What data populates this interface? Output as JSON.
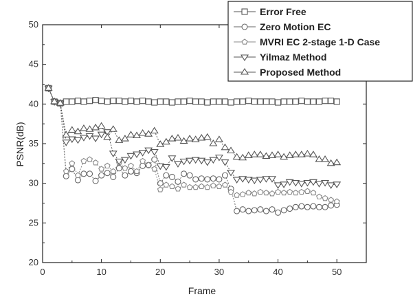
{
  "chart_data": {
    "type": "line",
    "title": "",
    "xlabel": "Frame",
    "ylabel": "PSNR(dB)",
    "xlim": [
      0,
      55
    ],
    "ylim": [
      20,
      50
    ],
    "x_ticks": [
      0,
      10,
      20,
      30,
      40,
      50
    ],
    "y_ticks": [
      20,
      25,
      30,
      35,
      40,
      45,
      50
    ],
    "grid": false,
    "legend_position": "top-right",
    "x": [
      1,
      2,
      3,
      4,
      5,
      6,
      7,
      8,
      9,
      10,
      11,
      12,
      13,
      14,
      15,
      16,
      17,
      18,
      19,
      20,
      21,
      22,
      23,
      24,
      25,
      26,
      27,
      28,
      29,
      30,
      31,
      32,
      33,
      34,
      35,
      36,
      37,
      38,
      39,
      40,
      41,
      42,
      43,
      44,
      45,
      46,
      47,
      48,
      49,
      50
    ],
    "series": [
      {
        "name": "Error Free",
        "marker": "square",
        "color": "#555555",
        "values": [
          42.0,
          40.3,
          40.1,
          40.3,
          40.3,
          40.4,
          40.3,
          40.4,
          40.5,
          40.4,
          40.3,
          40.4,
          40.4,
          40.3,
          40.4,
          40.3,
          40.4,
          40.3,
          40.2,
          40.3,
          40.3,
          40.2,
          40.3,
          40.3,
          40.4,
          40.3,
          40.3,
          40.2,
          40.3,
          40.3,
          40.3,
          40.2,
          40.3,
          40.3,
          40.4,
          40.3,
          40.3,
          40.3,
          40.3,
          40.2,
          40.3,
          40.3,
          40.3,
          40.4,
          40.3,
          40.3,
          40.3,
          40.4,
          40.4,
          40.3
        ]
      },
      {
        "name": "Zero Motion EC",
        "marker": "circle",
        "color": "#666666",
        "values": [
          42.0,
          40.3,
          40.1,
          30.9,
          31.8,
          30.4,
          31.2,
          31.2,
          30.3,
          31.0,
          31.3,
          30.8,
          31.9,
          31.0,
          31.5,
          31.3,
          32.2,
          32.3,
          33.0,
          30.0,
          31.0,
          30.8,
          30.2,
          31.2,
          31.0,
          30.5,
          30.6,
          30.5,
          30.6,
          30.5,
          31.0,
          29.3,
          26.5,
          26.7,
          26.5,
          26.6,
          26.7,
          26.5,
          26.7,
          26.3,
          26.6,
          26.8,
          27.0,
          27.1,
          27.0,
          27.1,
          27.0,
          27.0,
          27.2,
          27.3
        ]
      },
      {
        "name": "MVRI EC 2-stage 1-D Case",
        "marker": "pentagon",
        "color": "#888888",
        "values": [
          42.0,
          40.3,
          40.1,
          31.5,
          32.5,
          31.0,
          32.8,
          33.0,
          32.6,
          31.8,
          32.2,
          31.5,
          32.6,
          31.9,
          32.2,
          31.5,
          32.8,
          32.3,
          31.8,
          29.2,
          29.8,
          29.6,
          29.3,
          29.8,
          29.5,
          29.5,
          29.6,
          29.5,
          29.7,
          29.6,
          29.8,
          28.9,
          28.5,
          28.6,
          28.8,
          28.7,
          28.9,
          28.8,
          28.7,
          28.9,
          28.8,
          28.9,
          28.8,
          28.9,
          29.0,
          28.8,
          28.3,
          28.1,
          27.9,
          27.7
        ]
      },
      {
        "name": "Yilmaz Method",
        "marker": "triangle-down",
        "color": "#555555",
        "values": [
          42.0,
          40.3,
          40.1,
          35.2,
          35.6,
          35.5,
          35.8,
          36.0,
          35.7,
          36.2,
          36.5,
          33.8,
          32.8,
          33.0,
          33.5,
          33.7,
          33.9,
          34.2,
          34.0,
          32.2,
          32.1,
          33.2,
          32.5,
          32.8,
          32.9,
          33.0,
          32.9,
          32.7,
          33.0,
          33.3,
          32.7,
          31.4,
          30.5,
          30.6,
          30.5,
          30.4,
          30.5,
          30.6,
          30.6,
          29.8,
          29.9,
          30.2,
          30.1,
          30.0,
          30.1,
          30.2,
          30.0,
          30.1,
          29.8,
          29.9
        ]
      },
      {
        "name": "Proposed Method",
        "marker": "triangle-up",
        "color": "#555555",
        "values": [
          42.0,
          40.3,
          40.1,
          36.1,
          36.7,
          36.5,
          36.9,
          36.8,
          37.0,
          37.2,
          35.8,
          36.8,
          35.4,
          35.6,
          36.1,
          36.0,
          36.3,
          36.2,
          36.6,
          34.9,
          35.2,
          35.6,
          35.7,
          35.3,
          35.6,
          35.5,
          35.7,
          35.8,
          35.0,
          35.5,
          34.5,
          34.1,
          33.3,
          33.2,
          33.5,
          33.6,
          33.6,
          33.4,
          33.5,
          33.6,
          33.3,
          33.5,
          33.6,
          33.6,
          33.7,
          33.6,
          33.0,
          33.0,
          32.5,
          32.6
        ]
      }
    ]
  }
}
